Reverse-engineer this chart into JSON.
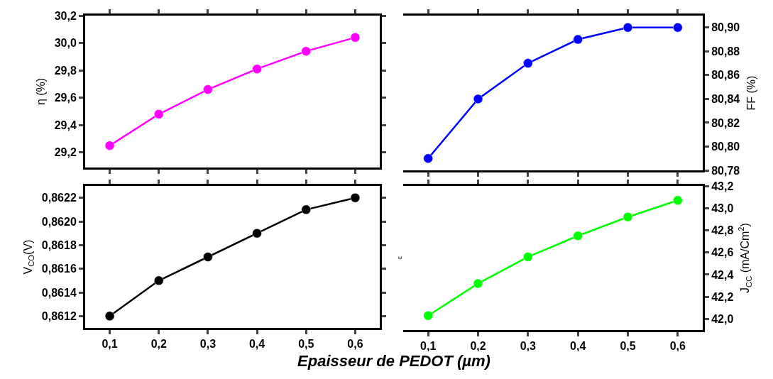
{
  "chart_data": [
    {
      "type": "line",
      "ylabel": "η (%)",
      "x": [
        0.1,
        0.2,
        0.3,
        0.4,
        0.5,
        0.6
      ],
      "series": [
        {
          "color": "#ff00ff",
          "values": [
            29.25,
            29.48,
            29.66,
            29.81,
            29.94,
            30.04
          ]
        }
      ],
      "xlim": [
        0.05,
        0.65
      ],
      "xticks": [
        {
          "value": 0.1,
          "label": null
        },
        {
          "value": 0.2,
          "label": null
        },
        {
          "value": 0.3,
          "label": null
        },
        {
          "value": 0.4,
          "label": null
        },
        {
          "value": 0.5,
          "label": null
        },
        {
          "value": 0.6,
          "label": null
        }
      ],
      "ylim": [
        29.09,
        30.2
      ],
      "yticks": [
        {
          "value": 29.2,
          "label": "29,2"
        },
        {
          "value": 29.4,
          "label": "29,4"
        },
        {
          "value": 29.6,
          "label": "29,6"
        },
        {
          "value": 29.8,
          "label": "29,8"
        },
        {
          "value": 30.0,
          "label": "30,0"
        },
        {
          "value": 30.2,
          "label": "30,2"
        }
      ],
      "tick_labels": "y",
      "marker": "circle"
    },
    {
      "type": "line",
      "y2label": "FF (%)",
      "x": [
        0.1,
        0.2,
        0.3,
        0.4,
        0.5,
        0.6
      ],
      "series": [
        {
          "color": "#0000ff",
          "axis": "y2",
          "values": [
            80.79,
            80.84,
            80.87,
            80.89,
            80.9,
            80.9
          ]
        }
      ],
      "xlim": [
        0.05,
        0.65
      ],
      "xticks": [
        {
          "value": 0.1,
          "label": null
        },
        {
          "value": 0.2,
          "label": null
        },
        {
          "value": 0.3,
          "label": null
        },
        {
          "value": 0.4,
          "label": null
        },
        {
          "value": 0.5,
          "label": null
        },
        {
          "value": 0.6,
          "label": null
        }
      ],
      "y2lim": [
        80.78,
        80.91
      ],
      "y2ticks": [
        {
          "value": 80.78,
          "label": "80,78"
        },
        {
          "value": 80.8,
          "label": "80,80"
        },
        {
          "value": 80.82,
          "label": "80,82"
        },
        {
          "value": 80.84,
          "label": "80,84"
        },
        {
          "value": 80.86,
          "label": "80,86"
        },
        {
          "value": 80.88,
          "label": "80,88"
        },
        {
          "value": 80.9,
          "label": "80,90"
        }
      ],
      "tick_labels": "y",
      "marker": "circle"
    },
    {
      "type": "line",
      "ylabel": "V$_{CO}$(V)",
      "xlabel": "Epaisseur de PEDOT (µm)",
      "x": [
        0.1,
        0.2,
        0.3,
        0.4,
        0.5,
        0.6
      ],
      "series": [
        {
          "color": "#000000",
          "values": [
            0.8612,
            0.8615,
            0.8617,
            0.8619,
            0.8621,
            0.8622
          ]
        }
      ],
      "xlim": [
        0.05,
        0.65
      ],
      "xticks": [
        {
          "value": 0.1,
          "label": "0,1"
        },
        {
          "value": 0.2,
          "label": "0,2"
        },
        {
          "value": 0.3,
          "label": "0,3"
        },
        {
          "value": 0.4,
          "label": "0,4"
        },
        {
          "value": 0.5,
          "label": "0,5"
        },
        {
          "value": 0.6,
          "label": "0,6"
        }
      ],
      "ylim": [
        0.8611,
        0.8623
      ],
      "yticks": [
        {
          "value": 0.8612,
          "label": "0,8612"
        },
        {
          "value": 0.8614,
          "label": "0,8614"
        },
        {
          "value": 0.8616,
          "label": "0,8616"
        },
        {
          "value": 0.8618,
          "label": "0,8618"
        },
        {
          "value": 0.862,
          "label": "0,8620"
        },
        {
          "value": 0.8622,
          "label": "0,8622"
        }
      ],
      "marker": "circle"
    },
    {
      "type": "line",
      "y2label": "J$_{CC}$ (mA/Cm$^{2}$)",
      "annotations": [
        "E"
      ],
      "x": [
        0.1,
        0.2,
        0.3,
        0.4,
        0.5,
        0.6
      ],
      "series": [
        {
          "color": "#00ff00",
          "axis": "y2",
          "values": [
            42.03,
            42.32,
            42.56,
            42.75,
            42.92,
            43.07
          ]
        }
      ],
      "xlim": [
        0.05,
        0.65
      ],
      "xticks": [
        {
          "value": 0.1,
          "label": "0,1"
        },
        {
          "value": 0.2,
          "label": "0,2"
        },
        {
          "value": 0.3,
          "label": "0,3"
        },
        {
          "value": 0.4,
          "label": "0,4"
        },
        {
          "value": 0.5,
          "label": "0,5"
        },
        {
          "value": 0.6,
          "label": "0,6"
        }
      ],
      "y2lim": [
        41.9,
        43.2
      ],
      "y2ticks": [
        {
          "value": 42.0,
          "label": "42,0"
        },
        {
          "value": 42.2,
          "label": "42,2"
        },
        {
          "value": 42.4,
          "label": "42,4"
        },
        {
          "value": 42.6,
          "label": "42,6"
        },
        {
          "value": 42.8,
          "label": "42,8"
        },
        {
          "value": 43.0,
          "label": "43,0"
        },
        {
          "value": 43.2,
          "label": "43,2"
        }
      ],
      "marker": "circle"
    }
  ]
}
